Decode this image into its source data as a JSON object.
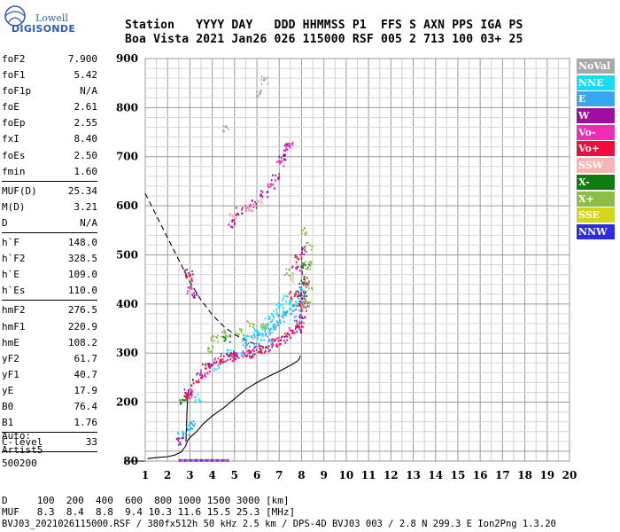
{
  "logo": {
    "line1": "Lowell",
    "line2": "DIGISONDE"
  },
  "header": {
    "line1": "Station   YYYY DAY   DDD HHMMSS P1  FFS S AXN PPS IGA PS",
    "line2": "Boa Vista 2021 Jan26 026 115000 RSF 005 2 713 100 03+ 25"
  },
  "params": [
    {
      "k": "foF2",
      "v": "7.900"
    },
    {
      "k": "foF1",
      "v": "5.42"
    },
    {
      "k": "foF1p",
      "v": "N/A"
    },
    {
      "k": "foE",
      "v": "2.61"
    },
    {
      "k": "foEp",
      "v": "2.55"
    },
    {
      "k": "fxI",
      "v": "8.40"
    },
    {
      "k": "foEs",
      "v": "2.50"
    },
    {
      "k": "fmin",
      "v": "1.60"
    },
    {
      "sep": true
    },
    {
      "k": "MUF(D)",
      "v": "25.34"
    },
    {
      "k": "M(D)",
      "v": "3.21"
    },
    {
      "k": "D",
      "v": "N/A"
    },
    {
      "sep": true
    },
    {
      "k": "h`F",
      "v": "148.0"
    },
    {
      "k": "h`F2",
      "v": "328.5"
    },
    {
      "k": "h`E",
      "v": "109.0"
    },
    {
      "k": "h`Es",
      "v": "110.0"
    },
    {
      "sep": true
    },
    {
      "k": "hmF2",
      "v": "276.5"
    },
    {
      "k": "hmF1",
      "v": "220.9"
    },
    {
      "k": "hmE",
      "v": "108.2"
    },
    {
      "k": "yF2",
      "v": "61.7"
    },
    {
      "k": "yF1",
      "v": "40.7"
    },
    {
      "k": "yE",
      "v": "17.9"
    },
    {
      "k": "B0",
      "v": "76.4"
    },
    {
      "k": "B1",
      "v": "1.76"
    },
    {
      "sep": true
    },
    {
      "k": "C-level",
      "v": "33"
    },
    {
      "sep": true
    }
  ],
  "auto": {
    "line1": "Auto:",
    "line2": "Artist5",
    "line3": "500200"
  },
  "bottom": {
    "line1": "D     100  200  400  600  800 1000 1500 3000 [km]",
    "line2": "MUF   8.3  8.4  8.8  9.4 10.3 11.6 15.5 25.3 [MHz]",
    "line3": "BVJ03_2021026115000.RSF / 380fx512h 50 kHz 2.5 km / DPS-4D BVJ03 003 / 2.8 N 299.3 E Ion2Png 1.3.20"
  },
  "legend": [
    {
      "label": "NoVal",
      "color": "#a9a9a9"
    },
    {
      "label": "NNE",
      "color": "#18dcf5"
    },
    {
      "label": "E",
      "color": "#37a8f0"
    },
    {
      "label": "W",
      "color": "#a00c9f"
    },
    {
      "label": "Vo-",
      "color": "#f02cb4"
    },
    {
      "label": "Vo+",
      "color": "#f20b3c"
    },
    {
      "label": "SSW",
      "color": "#f8b4b4"
    },
    {
      "label": "X-",
      "color": "#0e7d10"
    },
    {
      "label": "X+",
      "color": "#8cbe46"
    },
    {
      "label": "SSE",
      "color": "#d4d418"
    },
    {
      "label": "NNW",
      "color": "#2d2ce0"
    }
  ],
  "chart_data": {
    "type": "scatter",
    "xlim": [
      1,
      20
    ],
    "ylim": [
      80,
      900
    ],
    "x_ticks": [
      1,
      2,
      3,
      4,
      5,
      6,
      7,
      8,
      9,
      10,
      11,
      12,
      13,
      14,
      15,
      16,
      17,
      18,
      19,
      20
    ],
    "y_ticks": [
      80,
      200,
      300,
      400,
      500,
      600,
      700,
      800,
      900
    ],
    "grid": true,
    "series": [
      {
        "color": "#a9a9a9",
        "points": [
          [
            6.1,
            830
          ],
          [
            6.3,
            858
          ],
          [
            4.6,
            760
          ]
        ]
      },
      {
        "color": "#18dcf5",
        "points": [
          [
            3.0,
            150
          ],
          [
            3.3,
            210
          ],
          [
            4.2,
            275
          ],
          [
            4.8,
            300
          ],
          [
            5.5,
            330
          ],
          [
            6.0,
            345
          ],
          [
            6.3,
            360
          ],
          [
            6.5,
            370
          ],
          [
            6.8,
            380
          ],
          [
            7.0,
            395
          ],
          [
            7.2,
            380
          ],
          [
            7.6,
            405
          ],
          [
            5.4,
            300
          ],
          [
            6.2,
            335
          ],
          [
            6.7,
            352
          ],
          [
            7.3,
            410
          ],
          [
            2.6,
            135
          ]
        ]
      },
      {
        "color": "#37a8f0",
        "points": [
          [
            5.1,
            300
          ],
          [
            5.5,
            318
          ],
          [
            5.9,
            335
          ],
          [
            6.4,
            345
          ],
          [
            6.9,
            360
          ],
          [
            7.1,
            372
          ],
          [
            7.4,
            385
          ],
          [
            7.7,
            395
          ],
          [
            7.9,
            410
          ],
          [
            8.0,
            430
          ],
          [
            6.0,
            315
          ],
          [
            6.6,
            330
          ],
          [
            7.8,
            370
          ],
          [
            2.8,
            140
          ],
          [
            3.1,
            155
          ]
        ]
      },
      {
        "color": "#a00c9f",
        "points": [
          [
            2.5,
            122
          ],
          [
            2.9,
            225
          ],
          [
            3.4,
            255
          ],
          [
            3.8,
            275
          ],
          [
            4.5,
            292
          ],
          [
            5.0,
            296
          ],
          [
            5.8,
            302
          ],
          [
            6.5,
            312
          ],
          [
            7.2,
            330
          ],
          [
            7.8,
            350
          ],
          [
            8.0,
            380
          ],
          [
            8.1,
            420
          ],
          [
            4.8,
            565
          ],
          [
            5.2,
            590
          ],
          [
            5.8,
            605
          ],
          [
            6.3,
            625
          ],
          [
            6.8,
            660
          ],
          [
            7.1,
            700
          ],
          [
            7.3,
            720
          ],
          [
            2.9,
            465
          ],
          [
            3.1,
            420
          ],
          [
            7.9,
            470
          ],
          [
            8.0,
            510
          ]
        ]
      },
      {
        "color": "#f02cb4",
        "points": [
          [
            2.95,
            220
          ],
          [
            3.6,
            262
          ],
          [
            4.2,
            285
          ],
          [
            5.0,
            292
          ],
          [
            5.5,
            300
          ],
          [
            6.0,
            310
          ],
          [
            6.8,
            325
          ],
          [
            7.5,
            345
          ],
          [
            7.9,
            360
          ],
          [
            8.1,
            395
          ],
          [
            8.2,
            440
          ],
          [
            5.6,
            600
          ],
          [
            6.6,
            640
          ],
          [
            7.0,
            690
          ],
          [
            7.4,
            725
          ],
          [
            3.0,
            430
          ],
          [
            7.7,
            480
          ]
        ]
      },
      {
        "color": "#f20b3c",
        "points": [
          [
            2.85,
            210
          ],
          [
            3.2,
            240
          ],
          [
            3.7,
            272
          ],
          [
            4.3,
            288
          ],
          [
            4.9,
            294
          ],
          [
            5.6,
            300
          ],
          [
            6.2,
            305
          ],
          [
            6.9,
            320
          ],
          [
            7.4,
            340
          ],
          [
            7.85,
            362
          ],
          [
            8.0,
            400
          ],
          [
            8.15,
            450
          ],
          [
            7.6,
            420
          ],
          [
            2.95,
            455
          ],
          [
            7.8,
            500
          ]
        ]
      },
      {
        "color": "#f8b4b4",
        "points": [
          [
            5.7,
            595
          ],
          [
            6.1,
            610
          ],
          [
            4.9,
            578
          ],
          [
            7.6,
            455
          ]
        ]
      },
      {
        "color": "#0e7d10",
        "points": [
          [
            8.0,
            450
          ],
          [
            8.15,
            480
          ],
          [
            7.95,
            420
          ],
          [
            2.7,
            205
          ],
          [
            4.6,
            330
          ]
        ]
      },
      {
        "color": "#8cbe46",
        "points": [
          [
            4.1,
            330
          ],
          [
            4.5,
            340
          ],
          [
            5.2,
            345
          ],
          [
            5.7,
            362
          ],
          [
            6.2,
            355
          ],
          [
            8.2,
            405
          ],
          [
            8.3,
            440
          ],
          [
            8.25,
            480
          ],
          [
            8.3,
            520
          ],
          [
            8.1,
            550
          ],
          [
            7.4,
            465
          ],
          [
            3.9,
            310
          ]
        ]
      }
    ],
    "curves": [
      {
        "style": "solid",
        "points": [
          [
            1.1,
            85
          ],
          [
            1.5,
            87
          ],
          [
            2.0,
            89
          ],
          [
            2.3,
            92
          ],
          [
            2.6,
            98
          ],
          [
            2.8,
            110
          ],
          [
            2.9,
            122
          ],
          [
            3.0,
            128
          ],
          [
            3.3,
            140
          ],
          [
            3.6,
            156
          ],
          [
            4.0,
            172
          ],
          [
            4.5,
            188
          ],
          [
            5.0,
            207
          ],
          [
            5.5,
            226
          ],
          [
            6.0,
            240
          ],
          [
            6.5,
            252
          ],
          [
            7.0,
            263
          ],
          [
            7.5,
            275
          ],
          [
            7.8,
            283
          ],
          [
            7.9,
            288
          ],
          [
            7.95,
            295
          ]
        ]
      },
      {
        "style": "solid",
        "points": [
          [
            2.82,
            120
          ],
          [
            2.85,
            150
          ],
          [
            2.87,
            180
          ],
          [
            2.9,
            210
          ],
          [
            2.93,
            226
          ]
        ]
      },
      {
        "style": "dashed",
        "points": [
          [
            1.0,
            625
          ],
          [
            1.5,
            580
          ],
          [
            2.0,
            535
          ],
          [
            2.5,
            490
          ],
          [
            3.0,
            445
          ],
          [
            3.5,
            408
          ],
          [
            4.0,
            378
          ],
          [
            4.5,
            355
          ],
          [
            5.0,
            338
          ],
          [
            5.5,
            326
          ],
          [
            6.0,
            317
          ],
          [
            6.5,
            310
          ]
        ]
      }
    ]
  }
}
